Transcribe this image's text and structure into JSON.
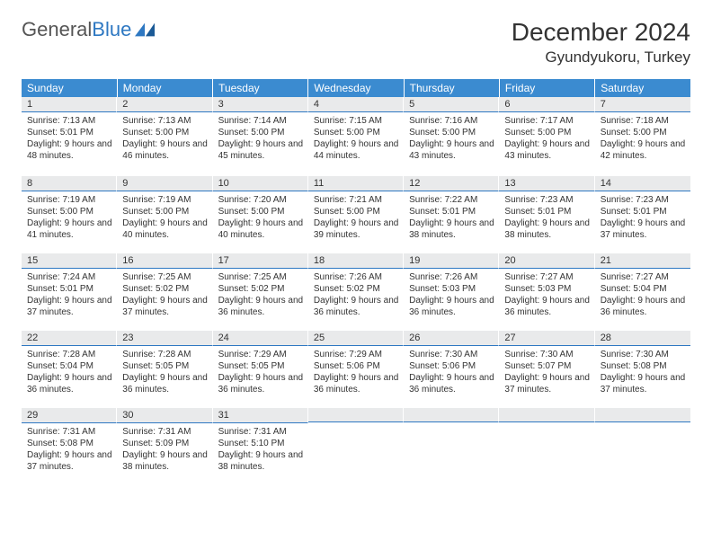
{
  "brand": {
    "name_gray": "General",
    "name_blue": "Blue"
  },
  "title": "December 2024",
  "location": "Gyundyukoru, Turkey",
  "colors": {
    "header_bg": "#3b8bd0",
    "header_text": "#ffffff",
    "daynum_bg": "#e9eaeb",
    "daynum_border": "#2e78c2",
    "body_text": "#333333"
  },
  "weekdays": [
    "Sunday",
    "Monday",
    "Tuesday",
    "Wednesday",
    "Thursday",
    "Friday",
    "Saturday"
  ],
  "weeks": [
    [
      {
        "n": "1",
        "sunrise": "7:13 AM",
        "sunset": "5:01 PM",
        "dl": "9 hours and 48 minutes."
      },
      {
        "n": "2",
        "sunrise": "7:13 AM",
        "sunset": "5:00 PM",
        "dl": "9 hours and 46 minutes."
      },
      {
        "n": "3",
        "sunrise": "7:14 AM",
        "sunset": "5:00 PM",
        "dl": "9 hours and 45 minutes."
      },
      {
        "n": "4",
        "sunrise": "7:15 AM",
        "sunset": "5:00 PM",
        "dl": "9 hours and 44 minutes."
      },
      {
        "n": "5",
        "sunrise": "7:16 AM",
        "sunset": "5:00 PM",
        "dl": "9 hours and 43 minutes."
      },
      {
        "n": "6",
        "sunrise": "7:17 AM",
        "sunset": "5:00 PM",
        "dl": "9 hours and 43 minutes."
      },
      {
        "n": "7",
        "sunrise": "7:18 AM",
        "sunset": "5:00 PM",
        "dl": "9 hours and 42 minutes."
      }
    ],
    [
      {
        "n": "8",
        "sunrise": "7:19 AM",
        "sunset": "5:00 PM",
        "dl": "9 hours and 41 minutes."
      },
      {
        "n": "9",
        "sunrise": "7:19 AM",
        "sunset": "5:00 PM",
        "dl": "9 hours and 40 minutes."
      },
      {
        "n": "10",
        "sunrise": "7:20 AM",
        "sunset": "5:00 PM",
        "dl": "9 hours and 40 minutes."
      },
      {
        "n": "11",
        "sunrise": "7:21 AM",
        "sunset": "5:00 PM",
        "dl": "9 hours and 39 minutes."
      },
      {
        "n": "12",
        "sunrise": "7:22 AM",
        "sunset": "5:01 PM",
        "dl": "9 hours and 38 minutes."
      },
      {
        "n": "13",
        "sunrise": "7:23 AM",
        "sunset": "5:01 PM",
        "dl": "9 hours and 38 minutes."
      },
      {
        "n": "14",
        "sunrise": "7:23 AM",
        "sunset": "5:01 PM",
        "dl": "9 hours and 37 minutes."
      }
    ],
    [
      {
        "n": "15",
        "sunrise": "7:24 AM",
        "sunset": "5:01 PM",
        "dl": "9 hours and 37 minutes."
      },
      {
        "n": "16",
        "sunrise": "7:25 AM",
        "sunset": "5:02 PM",
        "dl": "9 hours and 37 minutes."
      },
      {
        "n": "17",
        "sunrise": "7:25 AM",
        "sunset": "5:02 PM",
        "dl": "9 hours and 36 minutes."
      },
      {
        "n": "18",
        "sunrise": "7:26 AM",
        "sunset": "5:02 PM",
        "dl": "9 hours and 36 minutes."
      },
      {
        "n": "19",
        "sunrise": "7:26 AM",
        "sunset": "5:03 PM",
        "dl": "9 hours and 36 minutes."
      },
      {
        "n": "20",
        "sunrise": "7:27 AM",
        "sunset": "5:03 PM",
        "dl": "9 hours and 36 minutes."
      },
      {
        "n": "21",
        "sunrise": "7:27 AM",
        "sunset": "5:04 PM",
        "dl": "9 hours and 36 minutes."
      }
    ],
    [
      {
        "n": "22",
        "sunrise": "7:28 AM",
        "sunset": "5:04 PM",
        "dl": "9 hours and 36 minutes."
      },
      {
        "n": "23",
        "sunrise": "7:28 AM",
        "sunset": "5:05 PM",
        "dl": "9 hours and 36 minutes."
      },
      {
        "n": "24",
        "sunrise": "7:29 AM",
        "sunset": "5:05 PM",
        "dl": "9 hours and 36 minutes."
      },
      {
        "n": "25",
        "sunrise": "7:29 AM",
        "sunset": "5:06 PM",
        "dl": "9 hours and 36 minutes."
      },
      {
        "n": "26",
        "sunrise": "7:30 AM",
        "sunset": "5:06 PM",
        "dl": "9 hours and 36 minutes."
      },
      {
        "n": "27",
        "sunrise": "7:30 AM",
        "sunset": "5:07 PM",
        "dl": "9 hours and 37 minutes."
      },
      {
        "n": "28",
        "sunrise": "7:30 AM",
        "sunset": "5:08 PM",
        "dl": "9 hours and 37 minutes."
      }
    ],
    [
      {
        "n": "29",
        "sunrise": "7:31 AM",
        "sunset": "5:08 PM",
        "dl": "9 hours and 37 minutes."
      },
      {
        "n": "30",
        "sunrise": "7:31 AM",
        "sunset": "5:09 PM",
        "dl": "9 hours and 38 minutes."
      },
      {
        "n": "31",
        "sunrise": "7:31 AM",
        "sunset": "5:10 PM",
        "dl": "9 hours and 38 minutes."
      },
      {
        "empty": true
      },
      {
        "empty": true
      },
      {
        "empty": true
      },
      {
        "empty": true
      }
    ]
  ],
  "labels": {
    "sunrise": "Sunrise:",
    "sunset": "Sunset:",
    "daylight": "Daylight:"
  }
}
